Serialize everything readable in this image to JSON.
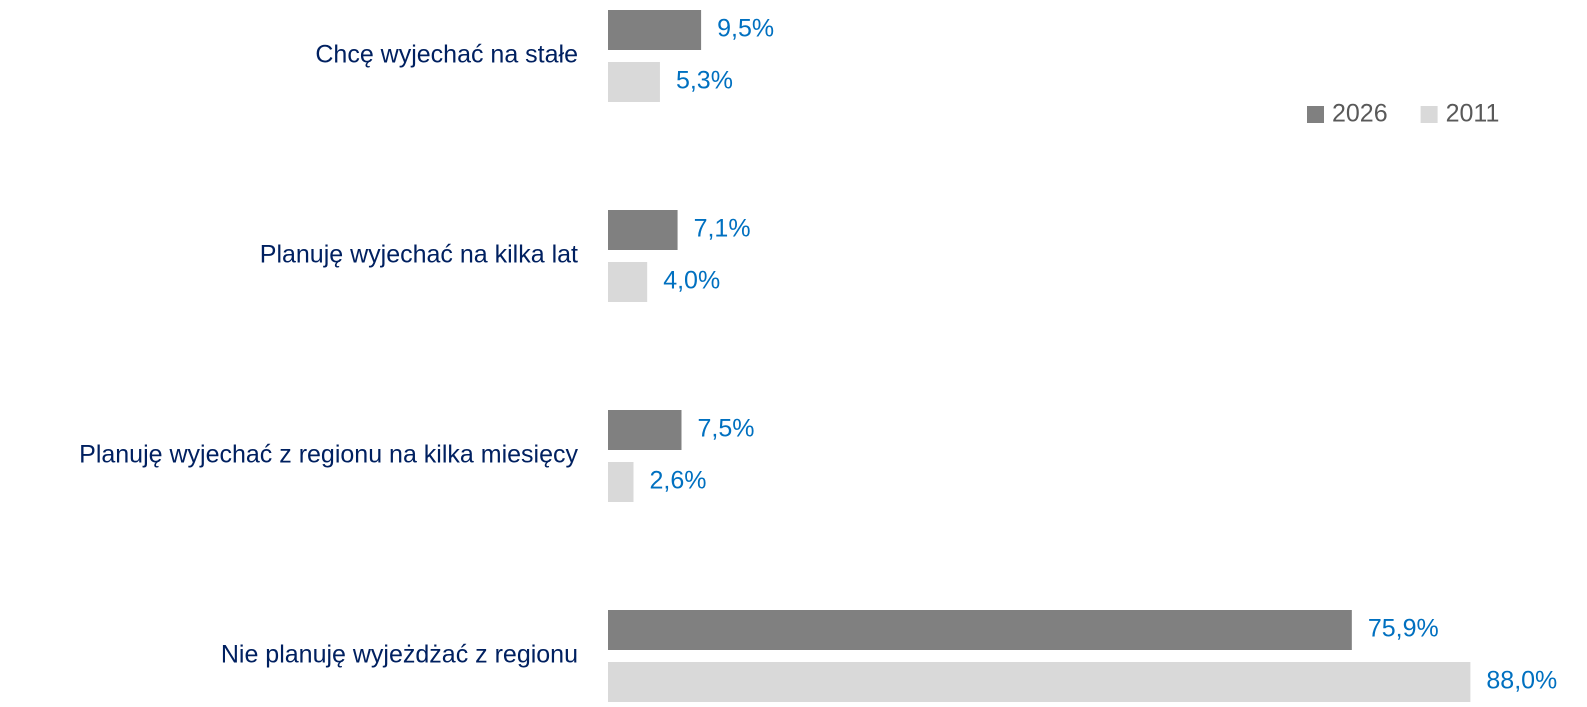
{
  "chart_data": {
    "type": "hbar",
    "categories": [
      "Chcę wyjechać na stałe",
      "Planuję wyjechać na kilka lat",
      "Planuję wyjechać z regionu na kilka miesięcy",
      "Nie planuję wyjeżdżać z regionu"
    ],
    "series": [
      {
        "name": "2026",
        "color": "#808080",
        "values": [
          9.5,
          7.1,
          7.5,
          75.9
        ],
        "value_labels": [
          "9,5%",
          "7,1%",
          "7,5%",
          "75,9%"
        ]
      },
      {
        "name": "2011",
        "color": "#d9d9d9",
        "values": [
          5.3,
          4.0,
          2.6,
          88.0
        ],
        "value_labels": [
          "5,3%",
          "4,0%",
          "2,6%",
          "88,0%"
        ]
      }
    ],
    "legend": "top-right"
  }
}
